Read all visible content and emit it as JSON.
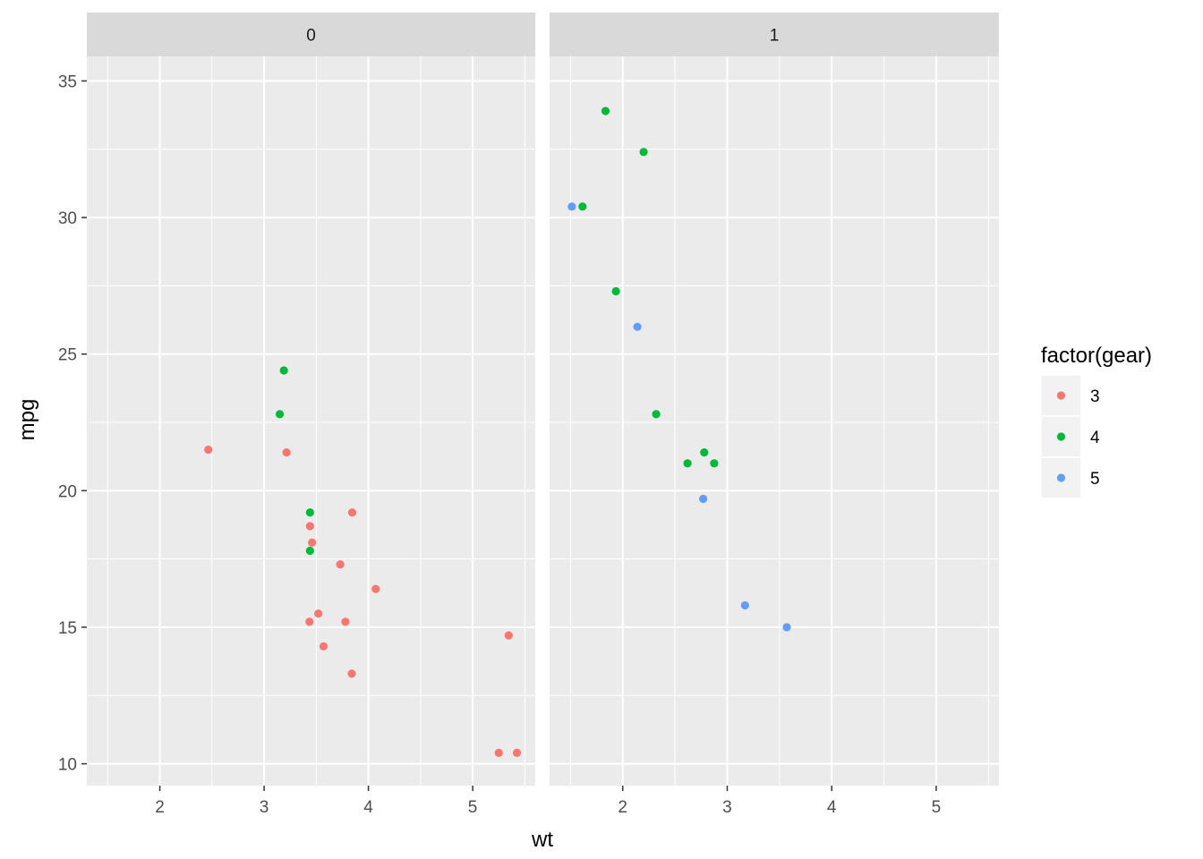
{
  "chart_data": {
    "type": "scatter",
    "xlabel": "wt",
    "ylabel": "mpg",
    "xlim": [
      1.3,
      5.6
    ],
    "ylim": [
      9.2,
      35.9
    ],
    "x_ticks": [
      2,
      3,
      4,
      5
    ],
    "y_ticks": [
      10,
      15,
      20,
      25,
      30,
      35
    ],
    "grid": true,
    "legend": {
      "title": "factor(gear)",
      "placement": "right",
      "entries": [
        {
          "label": "3",
          "color": "#F8766D"
        },
        {
          "label": "4",
          "color": "#00BA38"
        },
        {
          "label": "5",
          "color": "#619CFF"
        }
      ]
    },
    "facets": [
      {
        "label": "0",
        "series": [
          {
            "name": "3",
            "color": "#F8766D",
            "points": [
              [
                2.465,
                21.5
              ],
              [
                3.215,
                21.4
              ],
              [
                3.44,
                18.7
              ],
              [
                3.46,
                18.1
              ],
              [
                3.57,
                14.3
              ],
              [
                4.07,
                16.4
              ],
              [
                3.73,
                17.3
              ],
              [
                3.78,
                15.2
              ],
              [
                5.25,
                10.4
              ],
              [
                5.424,
                10.4
              ],
              [
                5.345,
                14.7
              ],
              [
                3.52,
                15.5
              ],
              [
                3.435,
                15.2
              ],
              [
                3.84,
                13.3
              ],
              [
                3.845,
                19.2
              ]
            ]
          },
          {
            "name": "4",
            "color": "#00BA38",
            "points": [
              [
                3.19,
                24.4
              ],
              [
                3.15,
                22.8
              ],
              [
                3.44,
                19.2
              ],
              [
                3.44,
                17.8
              ]
            ]
          }
        ]
      },
      {
        "label": "1",
        "series": [
          {
            "name": "4",
            "color": "#00BA38",
            "points": [
              [
                2.62,
                21.0
              ],
              [
                2.875,
                21.0
              ],
              [
                2.32,
                22.8
              ],
              [
                2.2,
                32.4
              ],
              [
                1.615,
                30.4
              ],
              [
                1.835,
                33.9
              ],
              [
                1.935,
                27.3
              ],
              [
                2.78,
                21.4
              ]
            ]
          },
          {
            "name": "5",
            "color": "#619CFF",
            "points": [
              [
                2.14,
                26.0
              ],
              [
                1.513,
                30.4
              ],
              [
                3.17,
                15.8
              ],
              [
                2.77,
                19.7
              ],
              [
                3.57,
                15.0
              ]
            ]
          }
        ]
      }
    ]
  }
}
